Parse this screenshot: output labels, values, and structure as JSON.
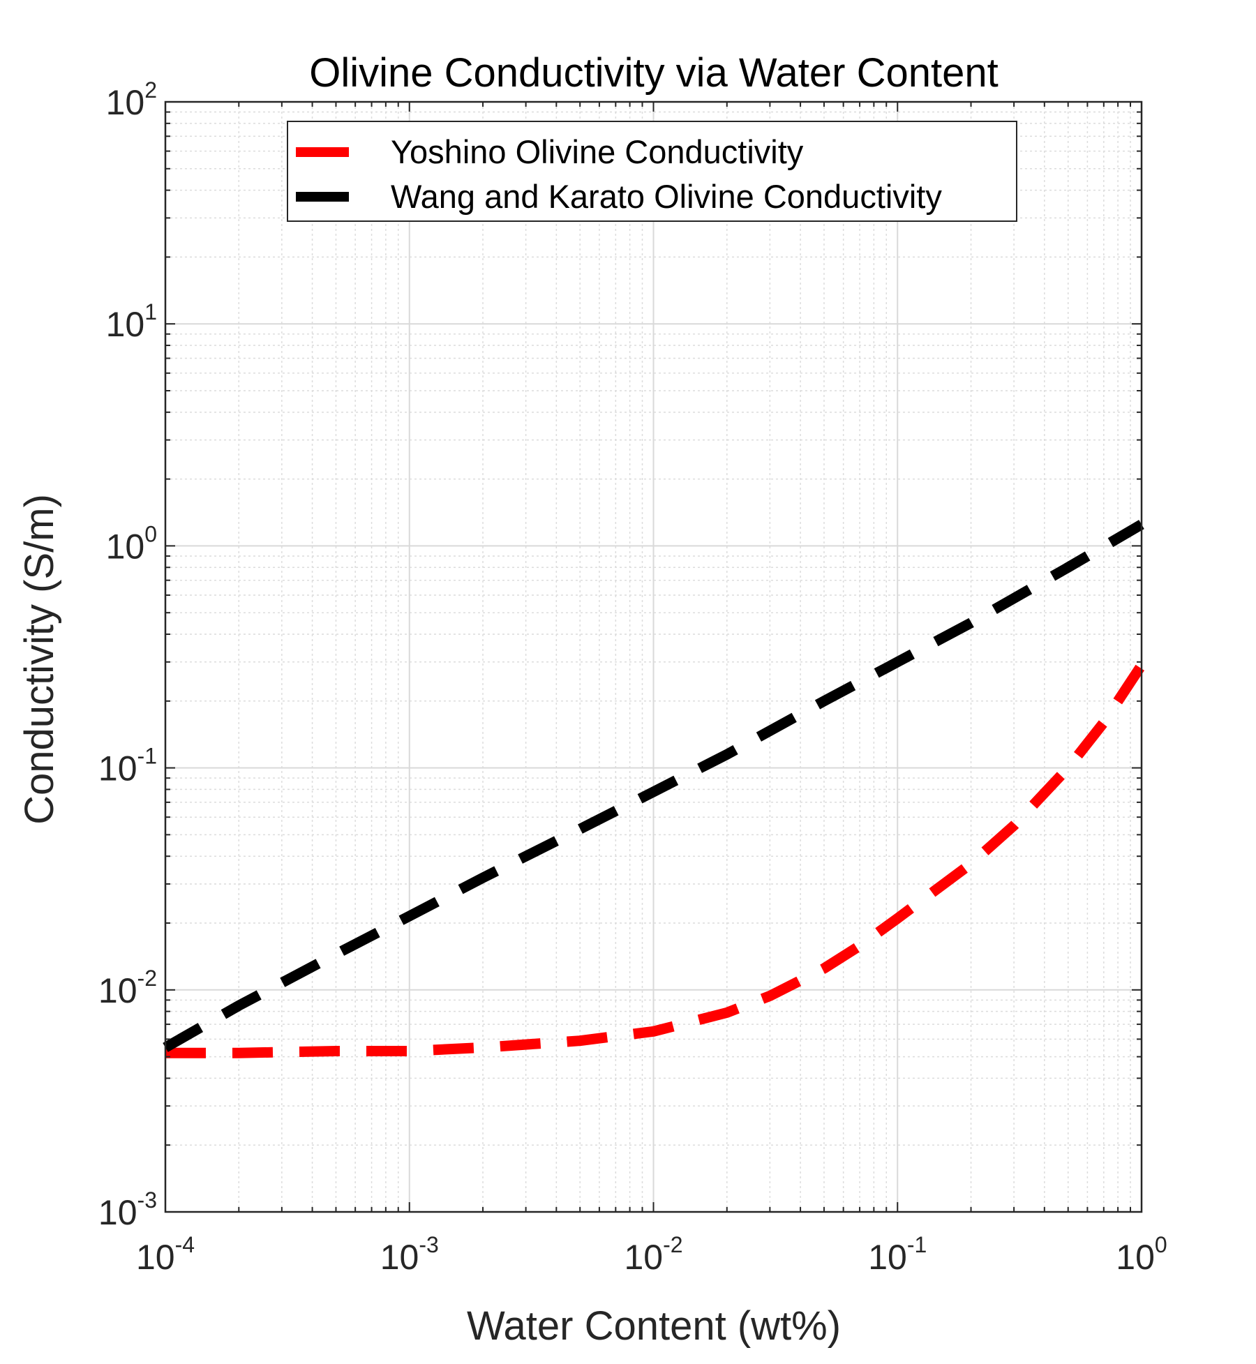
{
  "chart_data": {
    "type": "line",
    "title": "Olivine Conductivity via Water Content",
    "xlabel": "Water Content (wt%)",
    "ylabel": "Conductivity (S/m)",
    "xscale": "log",
    "yscale": "log",
    "xlim": [
      0.0001,
      1
    ],
    "ylim": [
      0.001,
      100
    ],
    "grid": true,
    "minor_grid": true,
    "legend_position": "top",
    "x_ticks": [
      {
        "base": "10",
        "exp": "-4",
        "value": 0.0001
      },
      {
        "base": "10",
        "exp": "-3",
        "value": 0.001
      },
      {
        "base": "10",
        "exp": "-2",
        "value": 0.01
      },
      {
        "base": "10",
        "exp": "-1",
        "value": 0.1
      },
      {
        "base": "10",
        "exp": "0",
        "value": 1
      }
    ],
    "y_ticks": [
      {
        "base": "10",
        "exp": "-3",
        "value": 0.001
      },
      {
        "base": "10",
        "exp": "-2",
        "value": 0.01
      },
      {
        "base": "10",
        "exp": "-1",
        "value": 0.1
      },
      {
        "base": "10",
        "exp": "0",
        "value": 1
      },
      {
        "base": "10",
        "exp": "1",
        "value": 10
      },
      {
        "base": "10",
        "exp": "2",
        "value": 100
      }
    ],
    "series": [
      {
        "name": "Yoshino Olivine Conductivity",
        "color": "#ff0000",
        "style": "dashed",
        "x": [
          0.0001,
          0.0002,
          0.0005,
          0.001,
          0.002,
          0.005,
          0.01,
          0.02,
          0.03,
          0.05,
          0.07,
          0.1,
          0.2,
          0.3,
          0.5,
          0.7,
          1.0
        ],
        "y": [
          0.0052,
          0.0052,
          0.0053,
          0.0053,
          0.0055,
          0.0059,
          0.0065,
          0.0079,
          0.0094,
          0.0125,
          0.0158,
          0.021,
          0.037,
          0.055,
          0.1,
          0.16,
          0.29
        ]
      },
      {
        "name": "Wang and Karato Olivine Conductivity",
        "color": "#000000",
        "style": "dashed",
        "x": [
          0.0001,
          0.0002,
          0.0005,
          0.001,
          0.002,
          0.005,
          0.01,
          0.02,
          0.05,
          0.1,
          0.2,
          0.5,
          1.0
        ],
        "y": [
          0.0055,
          0.0085,
          0.0145,
          0.0215,
          0.032,
          0.053,
          0.078,
          0.115,
          0.2,
          0.3,
          0.45,
          0.8,
          1.25
        ]
      }
    ]
  }
}
